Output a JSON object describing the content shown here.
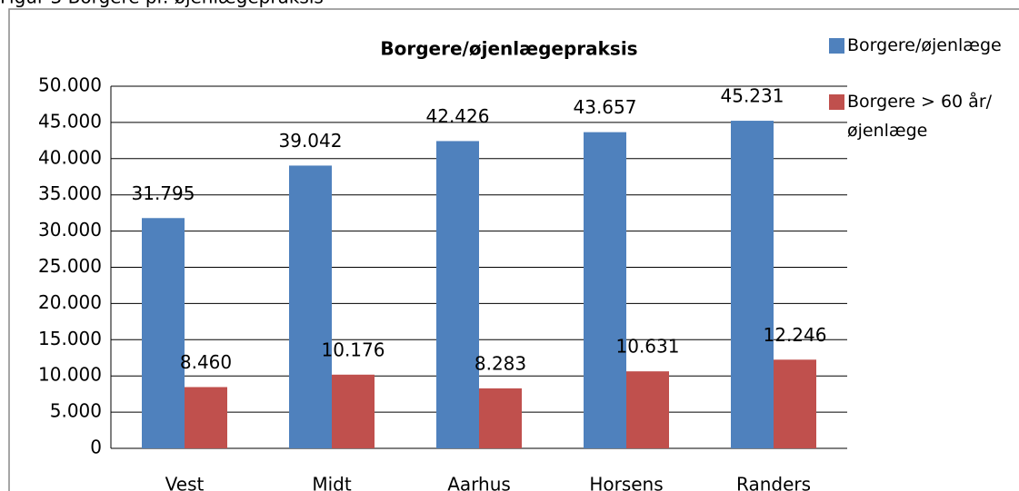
{
  "caption": "Figur 3 Borgere pr. øjenlægepraksis",
  "chart_data": {
    "type": "bar",
    "title": "Borgere/øjenlægepraksis",
    "categories": [
      "Vest",
      "Midt",
      "Aarhus",
      "Horsens",
      "Randers"
    ],
    "series": [
      {
        "name": "Borgere/øjenlæge",
        "color": "#4f81bd",
        "values": [
          31795,
          39042,
          42426,
          43657,
          45231
        ],
        "value_labels": [
          "31.795",
          "39.042",
          "42.426",
          "43.657",
          "45.231"
        ]
      },
      {
        "name": "Borgere > 60 år/øjenlæge",
        "color": "#c0504d",
        "values": [
          8460,
          10176,
          8283,
          10631,
          12246
        ],
        "value_labels": [
          "8.460",
          "10.176",
          "8.283",
          "10.631",
          "12.246"
        ]
      }
    ],
    "ylim": [
      0,
      50000
    ],
    "yticks": [
      0,
      {
        "value": 5000,
        "label": "5.000"
      },
      {
        "value": 10000,
        "label": "10.000"
      },
      {
        "value": 15000,
        "label": "15.000"
      },
      {
        "value": 20000,
        "label": "20.000"
      },
      {
        "value": 25000,
        "label": "25.000"
      },
      {
        "value": 30000,
        "label": "30.000"
      },
      {
        "value": 35000,
        "label": "35.000"
      },
      {
        "value": 40000,
        "label": "40.000"
      },
      {
        "value": 45000,
        "label": "45.000"
      },
      {
        "value": 50000,
        "label": "50.000"
      }
    ],
    "grid": true,
    "legend": "right"
  }
}
